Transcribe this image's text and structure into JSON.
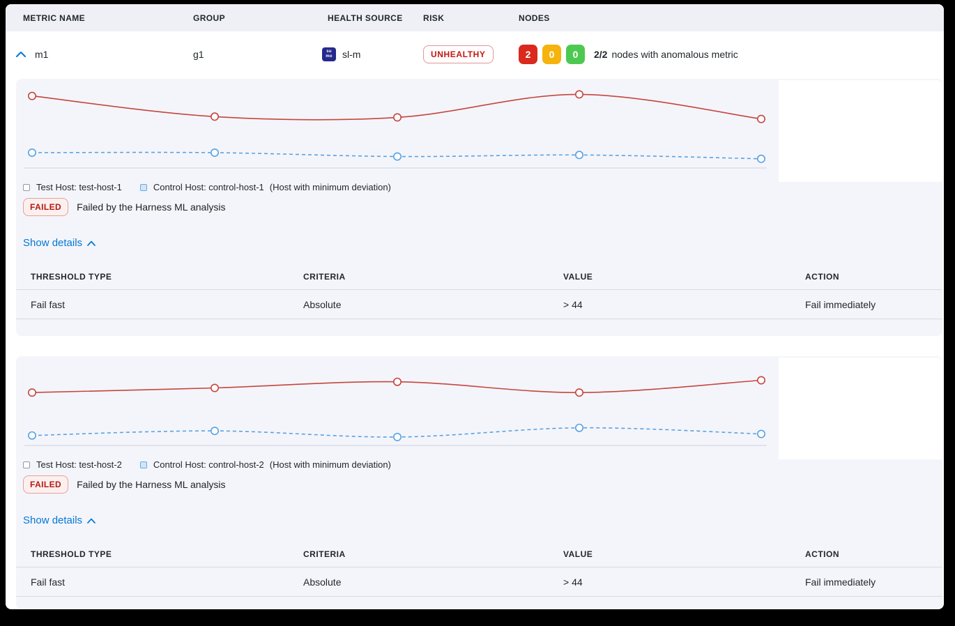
{
  "colors": {
    "accent_blue": "#0278D5",
    "risk_text_red": "#C2190F",
    "node_red": "#DA291D",
    "node_yellow": "#F6B30D",
    "node_green": "#4DC952",
    "test_line_red": "#C5453E",
    "control_line_blue": "#58A2E3",
    "card_background": "#F4F5FA",
    "header_background": "#EEF0F5"
  },
  "header": {
    "columns": [
      "METRIC NAME",
      "GROUP",
      "HEALTH SOURCE",
      "RISK",
      "NODES"
    ]
  },
  "metric_row": {
    "metric_name": "m1",
    "group": "g1",
    "health_source": {
      "name": "sl-m",
      "icon_text_top": "su",
      "icon_text_bottom": "mo"
    },
    "risk_label": "UNHEALTHY",
    "nodes": {
      "anomalous": "2",
      "warning": "0",
      "healthy": "0",
      "summary_bold": "2/2",
      "summary_text": "nodes with anomalous metric"
    }
  },
  "sections": [
    {
      "test_host_label": "Test Host: test-host-1",
      "control_host_label": "Control Host: control-host-1",
      "deviation_note": "(Host with minimum deviation)",
      "status_badge": "FAILED",
      "status_message": "Failed by the Harness ML analysis",
      "show_details_label": "Show details",
      "details_table": {
        "headers": [
          "THRESHOLD TYPE",
          "CRITERIA",
          "VALUE",
          "ACTION"
        ],
        "rows": [
          [
            "Fail fast",
            "Absolute",
            "> 44",
            "Fail immediately"
          ]
        ]
      }
    },
    {
      "test_host_label": "Test Host: test-host-2",
      "control_host_label": "Control Host: control-host-2",
      "deviation_note": "(Host with minimum deviation)",
      "status_badge": "FAILED",
      "status_message": "Failed by the Harness ML analysis",
      "show_details_label": "Show details",
      "details_table": {
        "headers": [
          "THRESHOLD TYPE",
          "CRITERIA",
          "VALUE",
          "ACTION"
        ],
        "rows": [
          [
            "Fail fast",
            "Absolute",
            "> 44",
            "Fail immediately"
          ]
        ]
      }
    }
  ],
  "chart_data": [
    {
      "type": "line",
      "x": [
        1,
        2,
        3,
        4,
        5
      ],
      "x_labels_visible": false,
      "ylim": [
        0,
        100
      ],
      "grid": false,
      "legend_position": "bottom",
      "series": [
        {
          "name": "Test Host: test-host-1",
          "style": "solid",
          "color": "#C5453E",
          "values": [
            94,
            67,
            66,
            96,
            64
          ]
        },
        {
          "name": "Control Host: control-host-1",
          "style": "dashed",
          "color": "#58A2E3",
          "values": [
            20,
            20,
            15,
            17,
            12
          ]
        }
      ]
    },
    {
      "type": "line",
      "x": [
        1,
        2,
        3,
        4,
        5
      ],
      "x_labels_visible": false,
      "ylim": [
        0,
        100
      ],
      "grid": false,
      "legend_position": "bottom",
      "series": [
        {
          "name": "Test Host: test-host-2",
          "style": "solid",
          "color": "#C5453E",
          "values": [
            69,
            75,
            83,
            69,
            85
          ]
        },
        {
          "name": "Control Host: control-host-2",
          "style": "dashed",
          "color": "#58A2E3",
          "values": [
            13,
            19,
            11,
            23,
            15
          ]
        }
      ]
    }
  ]
}
